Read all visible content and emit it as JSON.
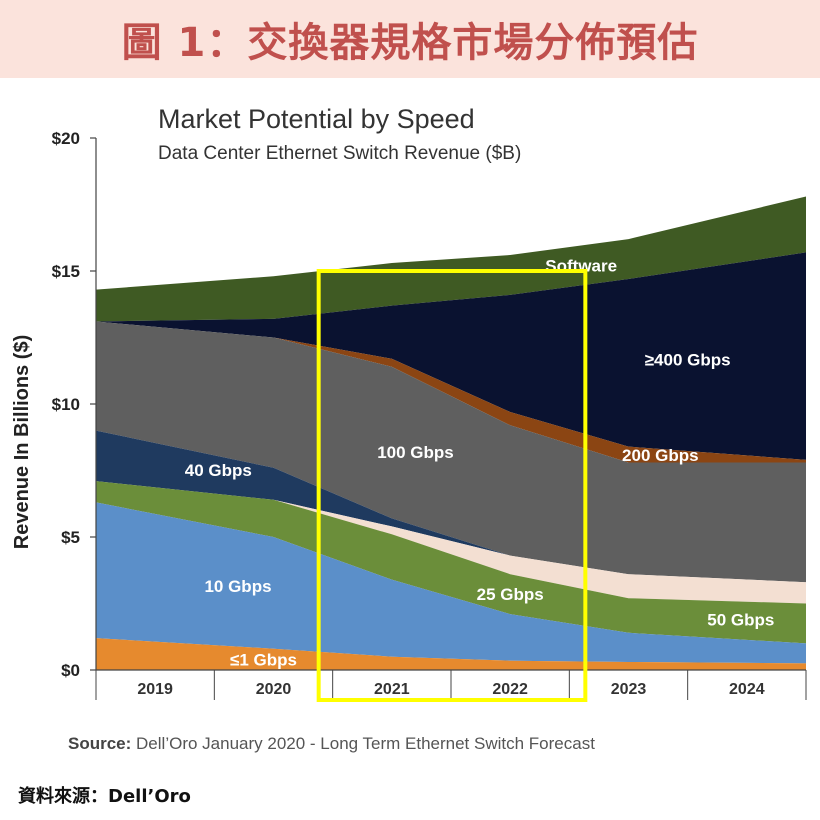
{
  "banner": {
    "title": "圖 1：交換器規格市場分佈預估"
  },
  "source": {
    "label": "Source:",
    "text": "Dell’Oro January 2020 - Long Term Ethernet Switch Forecast"
  },
  "credit": "資料來源：Dell’Oro",
  "highlight_color": "#ffff00",
  "chart_data": {
    "type": "area",
    "title": "Market Potential by Speed",
    "subtitle": "Data Center Ethernet Switch Revenue ($B)",
    "xlabel": "",
    "ylabel": "Revenue In Billions ($)",
    "ylim": [
      0,
      20
    ],
    "y_ticks": [
      {
        "value": 0,
        "label": "$0"
      },
      {
        "value": 5,
        "label": "$5"
      },
      {
        "value": 10,
        "label": "$10"
      },
      {
        "value": 15,
        "label": "$15"
      },
      {
        "value": 20,
        "label": "$20"
      }
    ],
    "categories": [
      "2019",
      "2020",
      "2021",
      "2022",
      "2023",
      "2024"
    ],
    "highlight": {
      "from": "2021",
      "to": "2022"
    },
    "series": [
      {
        "name": "≤1 Gbps",
        "color": "#e68a2e",
        "values": [
          1.2,
          0.8,
          0.5,
          0.35,
          0.3,
          0.25
        ]
      },
      {
        "name": "10 Gbps",
        "color": "#5b8fc9",
        "values": [
          5.1,
          4.2,
          2.9,
          1.75,
          1.1,
          0.75
        ]
      },
      {
        "name": "25 Gbps",
        "color": "#6b8e3a",
        "values": [
          0.8,
          1.4,
          1.7,
          1.5,
          1.3,
          1.5
        ]
      },
      {
        "name": "50 Gbps",
        "color": "#f3dfd2",
        "values": [
          0.0,
          0.0,
          0.3,
          0.7,
          0.9,
          0.8
        ]
      },
      {
        "name": "40 Gbps",
        "color": "#1f3a5f",
        "values": [
          1.9,
          1.2,
          0.3,
          0.0,
          0.0,
          0.0
        ]
      },
      {
        "name": "100 Gbps",
        "color": "#5f5f5f",
        "values": [
          4.1,
          4.9,
          5.7,
          4.9,
          4.2,
          4.5
        ]
      },
      {
        "name": "200 Gbps",
        "color": "#8b4513",
        "values": [
          0.0,
          0.0,
          0.3,
          0.5,
          0.6,
          0.1
        ]
      },
      {
        "name": "≥400 Gbps",
        "color": "#0a1230",
        "values": [
          0.0,
          0.7,
          2.0,
          4.4,
          6.3,
          7.8
        ]
      },
      {
        "name": "Software",
        "color": "#3f5a23",
        "values": [
          1.2,
          1.6,
          1.6,
          1.5,
          1.5,
          2.1
        ]
      }
    ]
  }
}
